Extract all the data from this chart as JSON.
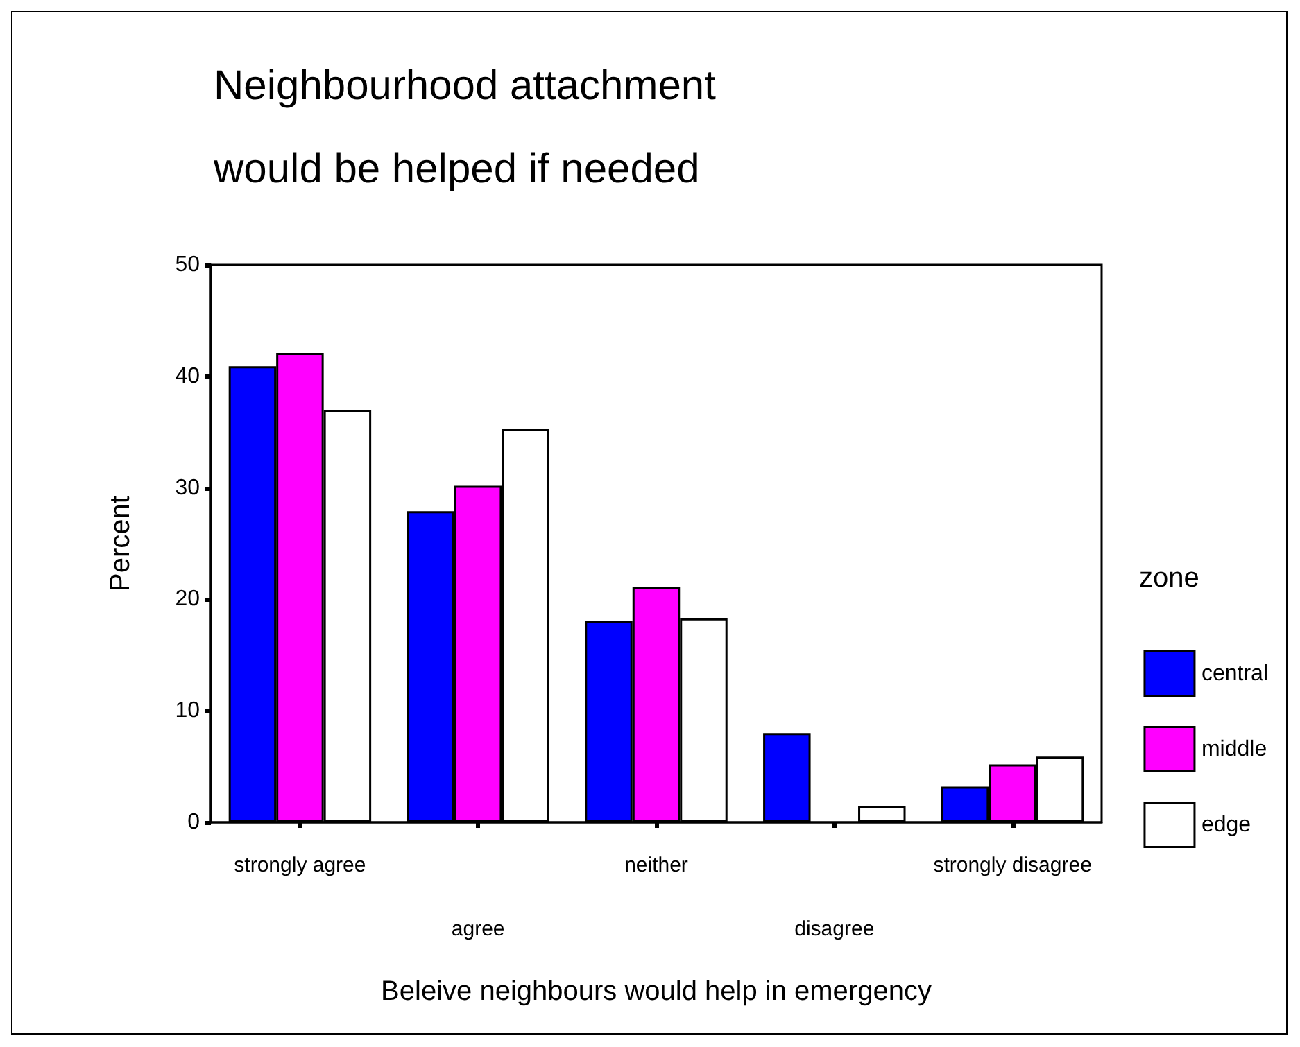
{
  "chart_data": {
    "type": "bar",
    "title": "Neighbourhood attachment\nwould be helped if needed",
    "xlabel": "Beleive neighbours would help in emergency",
    "ylabel": "Percent",
    "legend_title": "zone",
    "legend": "right",
    "grid": false,
    "categories": [
      "strongly agree",
      "agree",
      "neither",
      "disagree",
      "strongly disagree"
    ],
    "series": [
      {
        "name": "central",
        "color": "#0000ff",
        "values": [
          40.9,
          27.9,
          18.1,
          8.0,
          3.2
        ]
      },
      {
        "name": "middle",
        "color": "#ff00ff",
        "values": [
          42.1,
          30.2,
          21.1,
          null,
          5.2
        ]
      },
      {
        "name": "edge",
        "color": "#ffffff",
        "values": [
          37.0,
          35.3,
          18.3,
          1.5,
          5.9
        ]
      }
    ],
    "ylim": [
      0,
      50
    ],
    "yticks": [
      0,
      10,
      20,
      30,
      40,
      50
    ]
  }
}
